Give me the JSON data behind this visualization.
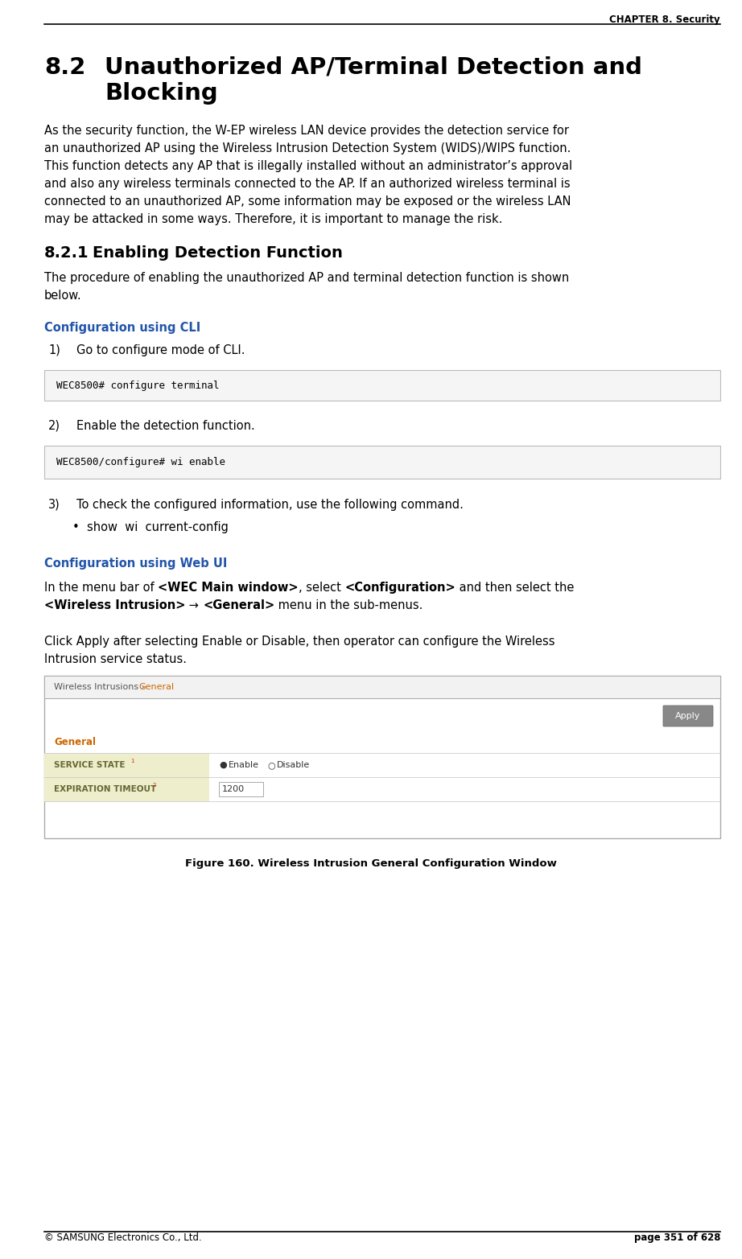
{
  "page_width": 9.22,
  "page_height": 15.65,
  "dpi": 100,
  "bg_color": "#ffffff",
  "header_text": "CHAPTER 8. Security",
  "header_font_size": 8.5,
  "footer_left": "© SAMSUNG Electronics Co., Ltd.",
  "footer_right": "page 351 of 628",
  "footer_font_size": 8.5,
  "section_number": "8.2",
  "section_title_line1": "Unauthorized AP/Terminal Detection and",
  "section_title_line2": "Blocking",
  "section_title_font_size": 21,
  "section_body_lines": [
    "As the security function, the W-EP wireless LAN device provides the detection service for",
    "an unauthorized AP using the Wireless Intrusion Detection System (WIDS)/WIPS function.",
    "This function detects any AP that is illegally installed without an administrator’s approval",
    "and also any wireless terminals connected to the AP. If an authorized wireless terminal is",
    "connected to an unauthorized AP, some information may be exposed or the wireless LAN",
    "may be attacked in some ways. Therefore, it is important to manage the risk."
  ],
  "section_body_font_size": 10.5,
  "subsection_number": "8.2.1",
  "subsection_title": "Enabling Detection Function",
  "subsection_title_font_size": 14,
  "subsection_body_lines": [
    "The procedure of enabling the unauthorized AP and terminal detection function is shown",
    "below."
  ],
  "subsection_body_font_size": 10.5,
  "cli_heading": "Configuration using CLI",
  "cli_heading_color": "#2255aa",
  "cli_heading_font_size": 10.5,
  "step1_label": "1)",
  "step1_text": "Go to configure mode of CLI.",
  "step_font_size": 10.5,
  "code_box1": "WEC8500# configure terminal",
  "code_box1_bg": "#f5f5f5",
  "code_font_size": 9,
  "step2_label": "2)",
  "step2_text": "Enable the detection function.",
  "code_box2": "WEC8500/configure# wi enable",
  "code_box2_bg": "#f5f5f5",
  "step3_label": "3)",
  "step3_text": "To check the configured information, use the following command.",
  "bullet_text": "•  show  wi  current-config",
  "webui_heading": "Configuration using Web UI",
  "webui_heading_color": "#2255aa",
  "webui_heading_font_size": 10.5,
  "webui_body1_normal1": "In the menu bar of ",
  "webui_body1_bold1": "<WEC Main window>",
  "webui_body1_normal2": ", select ",
  "webui_body1_bold2": "<Configuration>",
  "webui_body1_normal3": " and then select the",
  "webui_body1_bold3": "<Wireless Intrusion>",
  "webui_body1_normal4": " → ",
  "webui_body1_bold4": "<General>",
  "webui_body1_normal5": " menu in the sub-menus.",
  "webui_body2_lines": [
    "Click Apply after selecting Enable or Disable, then operator can configure the Wireless",
    "Intrusion service status."
  ],
  "webui_body_font_size": 10.5,
  "figure_caption": "Figure 160. Wireless Intrusion General Configuration Window",
  "figure_caption_font_size": 9.5,
  "ui_breadcrumb_wi": "Wireless Intrusions › ",
  "ui_breadcrumb_gen": "General",
  "ui_breadcrumb_wi_color": "#555555",
  "ui_breadcrumb_gen_color": "#cc6600",
  "ui_apply_text": "Apply",
  "ui_apply_bg": "#888888",
  "ui_section_label": "General",
  "ui_section_label_color": "#cc6600",
  "ui_row1_label": "SERVICE STATE",
  "ui_row1_sup": "1",
  "ui_row1_label_color": "#666633",
  "ui_row1_label_bg": "#eeeecc",
  "ui_row1_value_filled": "●",
  "ui_row1_enable": "Enable",
  "ui_row1_empty": "○",
  "ui_row1_disable": "Disable",
  "ui_row2_label": "EXPIRATION TIMEOUT",
  "ui_row2_sup": "2",
  "ui_row2_label_color": "#666633",
  "ui_row2_label_bg": "#eeeecc",
  "ui_row2_value": "1200"
}
